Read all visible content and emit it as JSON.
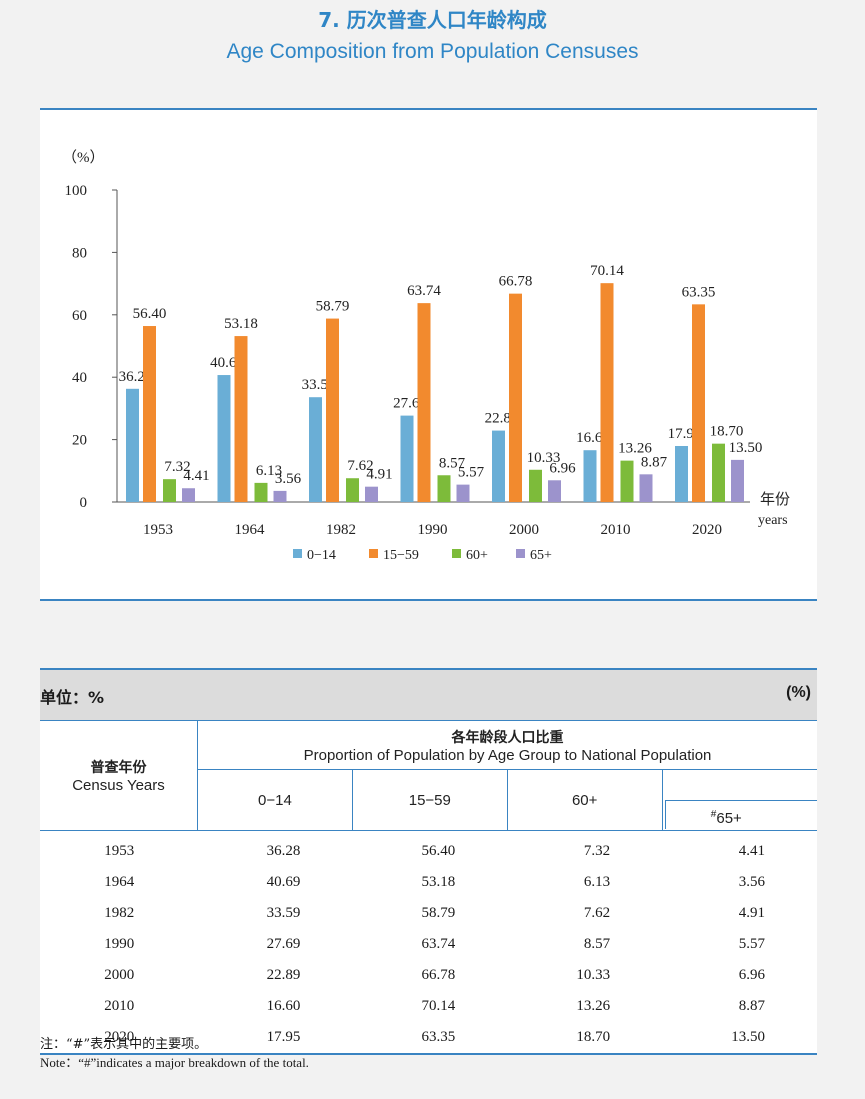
{
  "title": {
    "cn": "7. 历次普查人口年龄构成",
    "en": "Age Composition from Population Censuses"
  },
  "chart_data": {
    "type": "bar",
    "categories": [
      "1953",
      "1964",
      "1982",
      "1990",
      "2000",
      "2010",
      "2020"
    ],
    "series": [
      {
        "name": "0−14",
        "color": "#6aaed6",
        "values": [
          36.28,
          40.69,
          33.59,
          27.69,
          22.89,
          16.6,
          17.95
        ]
      },
      {
        "name": "15−59",
        "color": "#f28a2e",
        "values": [
          56.4,
          53.18,
          58.79,
          63.74,
          66.78,
          70.14,
          63.35
        ]
      },
      {
        "name": "60+",
        "color": "#7dbb3a",
        "values": [
          7.32,
          6.13,
          7.62,
          8.57,
          10.33,
          13.26,
          18.7
        ]
      },
      {
        "name": "65+",
        "color": "#9c93cc",
        "values": [
          4.41,
          3.56,
          4.91,
          5.57,
          6.96,
          8.87,
          13.5
        ]
      }
    ],
    "ylabel": "（%）",
    "xlabel_cn": "年份",
    "xlabel_en": "years",
    "ylim": [
      0,
      100
    ],
    "yticks": [
      0,
      20,
      40,
      60,
      80,
      100
    ],
    "legend_position": "bottom",
    "grid": false
  },
  "table": {
    "unit_left": "单位：%",
    "unit_right": "(%)",
    "year_header_cn": "普查年份",
    "year_header_en": "Census Years",
    "group_header_cn": "各年龄段人口比重",
    "group_header_en": "Proportion of Population by Age Group to National Population",
    "columns": [
      "0−14",
      "15−59",
      "60+",
      "65+"
    ],
    "sub_mark": "#",
    "rows": [
      {
        "year": "1953",
        "v": [
          "36.28",
          "56.40",
          "7.32",
          "4.41"
        ]
      },
      {
        "year": "1964",
        "v": [
          "40.69",
          "53.18",
          "6.13",
          "3.56"
        ]
      },
      {
        "year": "1982",
        "v": [
          "33.59",
          "58.79",
          "7.62",
          "4.91"
        ]
      },
      {
        "year": "1990",
        "v": [
          "27.69",
          "63.74",
          "8.57",
          "5.57"
        ]
      },
      {
        "year": "2000",
        "v": [
          "22.89",
          "66.78",
          "10.33",
          "6.96"
        ]
      },
      {
        "year": "2010",
        "v": [
          "16.60",
          "70.14",
          "13.26",
          "8.87"
        ]
      },
      {
        "year": "2020",
        "v": [
          "17.95",
          "63.35",
          "18.70",
          "13.50"
        ]
      }
    ]
  },
  "note": {
    "cn": "注：“#”表示其中的主要项。",
    "en": "Note：“#”indicates a major breakdown of the total."
  }
}
